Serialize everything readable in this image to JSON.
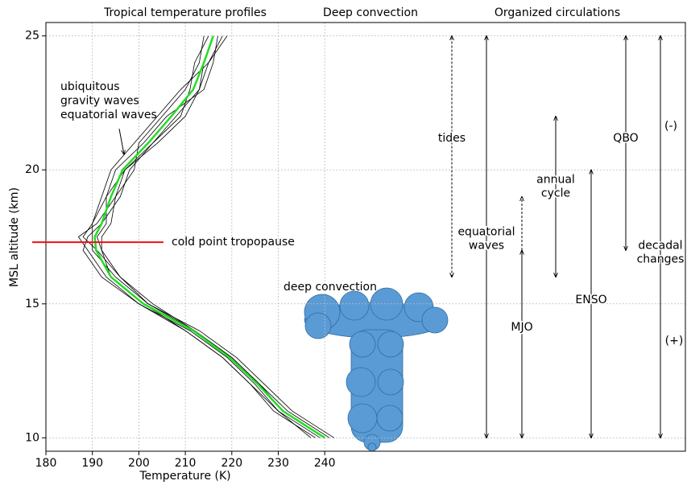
{
  "chart_data": {
    "type": "profile",
    "headers": [
      "Tropical temperature profiles",
      "Deep convection",
      "Organized circulations"
    ],
    "xlabel": "Temperature (K)",
    "ylabel": "MSL altitude (km)",
    "xlim": [
      180,
      317.6
    ],
    "ylim": [
      9.5,
      25.5
    ],
    "xticks": [
      180,
      190,
      200,
      210,
      220,
      230,
      240
    ],
    "yticks": [
      10,
      15,
      20,
      25
    ],
    "grid": true,
    "y": [
      10,
      11,
      12,
      13,
      14,
      15,
      16,
      17,
      17.5,
      18,
      19,
      20,
      21,
      22,
      23,
      24,
      25
    ],
    "series": [
      {
        "color": "#000000",
        "values": [
          242,
          233,
          227,
          221,
          213,
          202,
          196,
          191,
          188,
          190,
          193,
          197,
          204,
          210,
          213,
          215,
          218
        ]
      },
      {
        "color": "#000000",
        "values": [
          238,
          229,
          224,
          218,
          210,
          200,
          193,
          189,
          187,
          191,
          195,
          199,
          200,
          205,
          210,
          213,
          214
        ]
      },
      {
        "color": "#000000",
        "values": [
          241,
          232,
          226,
          220,
          212,
          203,
          196,
          192,
          191,
          193,
          193,
          195,
          201,
          206,
          214,
          216,
          217
        ]
      },
      {
        "color": "#000000",
        "values": [
          239,
          230,
          225,
          219,
          211,
          200,
          192,
          188,
          189,
          192,
          196,
          198,
          203,
          209,
          211,
          212,
          215
        ]
      },
      {
        "color": "#000000",
        "values": [
          240,
          231,
          226,
          220,
          212,
          202,
          195,
          190,
          190,
          190,
          192,
          194,
          199,
          204,
          209,
          215,
          219
        ]
      },
      {
        "color": "#000000",
        "values": [
          237,
          230,
          224,
          218,
          210,
          201,
          194,
          192,
          192,
          194,
          195,
          197,
          203,
          208,
          213,
          214,
          216
        ]
      },
      {
        "color": "#22dd22",
        "values": [
          240,
          231,
          225.6,
          219.5,
          211.7,
          201,
          194,
          190.8,
          190.5,
          192,
          194,
          196.5,
          202,
          207,
          211.7,
          214,
          216
        ]
      }
    ],
    "waves_annotation": {
      "lines": [
        "ubiquitous",
        "gravity waves",
        "equatorial waves"
      ],
      "color": "#1010e0"
    },
    "tropopause": {
      "label": "cold point tropopause",
      "altitude": 17.3,
      "color": "#ee1111"
    },
    "convection_label": "deep convection",
    "ranges": [
      {
        "label": [
          "tides"
        ],
        "bottom": 16,
        "top": 25,
        "dashed": true
      },
      {
        "label": [
          "equatorial",
          "waves"
        ],
        "bottom": 10,
        "top": 25,
        "dashed": false
      },
      {
        "bottom": 17,
        "top": 19,
        "dashed": true
      },
      {
        "label": [
          "MJO"
        ],
        "bottom": 10,
        "top": 17,
        "dashed": false
      },
      {
        "label": [
          "annual",
          "cycle"
        ],
        "bottom": 16,
        "top": 22,
        "dashed": false
      },
      {
        "label": [
          "ENSO"
        ],
        "bottom": 10,
        "top": 20,
        "dashed": false
      },
      {
        "label": [
          "QBO"
        ],
        "bottom": 17,
        "top": 25,
        "dashed": false
      },
      {
        "label": [
          "decadal",
          "changes"
        ],
        "bottom": 10,
        "top": 25,
        "dashed": false
      }
    ],
    "signs": [
      "(-)",
      "(+)"
    ]
  }
}
